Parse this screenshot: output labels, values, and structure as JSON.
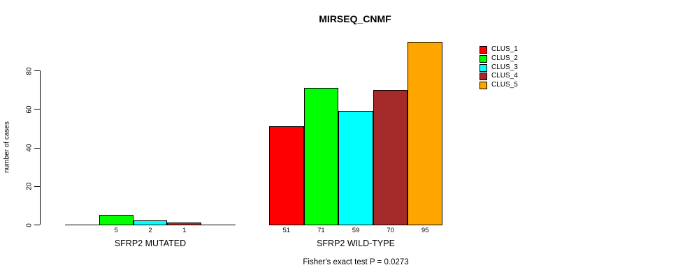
{
  "title": "MIRSEQ_CNMF",
  "chart_data": {
    "type": "bar",
    "title": "MIRSEQ_CNMF",
    "xlabel": "",
    "ylabel": "number of cases",
    "ylim": [
      0,
      96
    ],
    "yticks": [
      0,
      20,
      40,
      60,
      80
    ],
    "grid": false,
    "clusters": [
      "CLUS_1",
      "CLUS_2",
      "CLUS_3",
      "CLUS_4",
      "CLUS_5"
    ],
    "colors": [
      "#ff0000",
      "#00ff00",
      "#00ffff",
      "#a52a2a",
      "#ffa500"
    ],
    "groups": [
      {
        "label": "SFRP2 MUTATED",
        "values": [
          0,
          5,
          2,
          1,
          0
        ],
        "value_labels_shown": [
          "5",
          "2",
          "1"
        ]
      },
      {
        "label": "SFRP2 WILD-TYPE",
        "values": [
          51,
          71,
          59,
          70,
          95
        ],
        "value_labels_shown": [
          "51",
          "71",
          "59",
          "70",
          "95"
        ]
      }
    ],
    "legend": {
      "position": "top-right",
      "entries": [
        {
          "label": "CLUS_1",
          "color": "#ff0000"
        },
        {
          "label": "CLUS_2",
          "color": "#00ff00"
        },
        {
          "label": "CLUS_3",
          "color": "#00ffff"
        },
        {
          "label": "CLUS_4",
          "color": "#a52a2a"
        },
        {
          "label": "CLUS_5",
          "color": "#ffa500"
        }
      ]
    },
    "annotation": "Fisher's exact test P = 0.0273"
  }
}
